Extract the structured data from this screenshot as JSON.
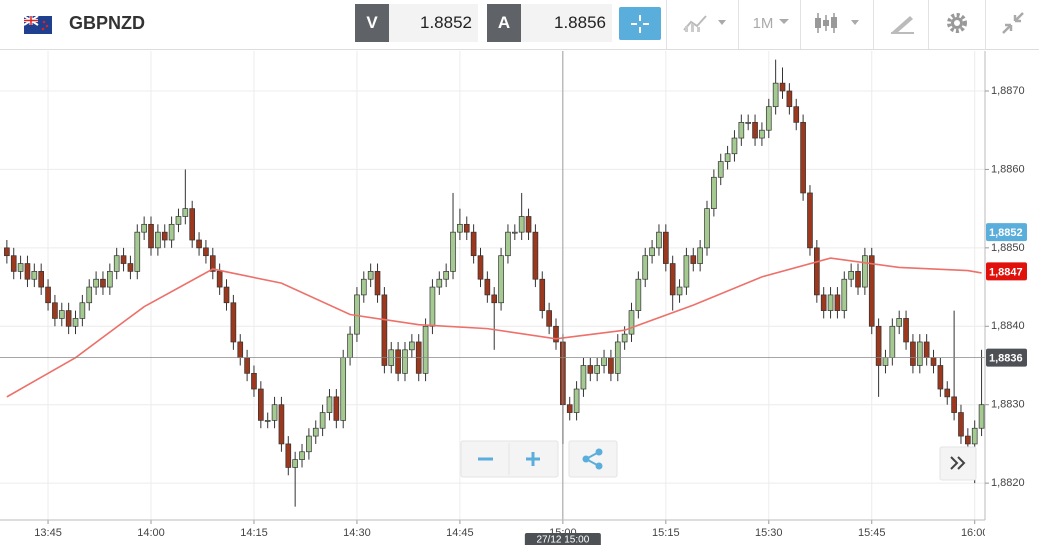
{
  "header": {
    "symbol": "GBPNZD",
    "bid_label": "V",
    "bid": 1.8852,
    "ask_label": "A",
    "ask": 1.8856,
    "timeframe": "1M"
  },
  "chart_data": {
    "type": "candlestick",
    "x": [
      819,
      820,
      821,
      822,
      823,
      824,
      825,
      826,
      827,
      828,
      829,
      830,
      831,
      832,
      833,
      834,
      835,
      836,
      837,
      838,
      839,
      840,
      841,
      842,
      843,
      844,
      845,
      846,
      847,
      848,
      849,
      850,
      851,
      852,
      853,
      854,
      855,
      856,
      857,
      858,
      859,
      860,
      861,
      862,
      863,
      864,
      865,
      866,
      867,
      868,
      869,
      870,
      871,
      872,
      873,
      874,
      875,
      876,
      877,
      878,
      879,
      880,
      881,
      882,
      883,
      884,
      885,
      886,
      887,
      888,
      889,
      890,
      891,
      892,
      893,
      894,
      895,
      896,
      897,
      898,
      899,
      900,
      901,
      902,
      903,
      904,
      905,
      906,
      907,
      908,
      909,
      910,
      911,
      912,
      913,
      914,
      915,
      916,
      917,
      918,
      919,
      920,
      921,
      922,
      923,
      924,
      925,
      926,
      927,
      928,
      929,
      930,
      931,
      932,
      933,
      934,
      935,
      936,
      937,
      938,
      939,
      940,
      941,
      942,
      943,
      944,
      945,
      946,
      947,
      948,
      949,
      950,
      951,
      952,
      953,
      954,
      955,
      956,
      957,
      958,
      959,
      960,
      961
    ],
    "open": [
      1.885,
      1.8849,
      1.8847,
      1.8848,
      1.8846,
      1.8847,
      1.8845,
      1.8843,
      1.8841,
      1.8842,
      1.884,
      1.8841,
      1.8843,
      1.8845,
      1.8846,
      1.8845,
      1.8847,
      1.8849,
      1.8848,
      1.8847,
      1.8852,
      1.8853,
      1.885,
      1.8852,
      1.8851,
      1.8853,
      1.8854,
      1.8855,
      1.8851,
      1.885,
      1.8849,
      1.8847,
      1.8845,
      1.8843,
      1.8838,
      1.8836,
      1.8834,
      1.8832,
      1.8828,
      1.8828,
      1.883,
      1.8825,
      1.8822,
      1.8823,
      1.8824,
      1.8826,
      1.8827,
      1.8829,
      1.8831,
      1.8828,
      1.8836,
      1.8839,
      1.8844,
      1.8846,
      1.8847,
      1.8844,
      1.8835,
      1.8837,
      1.8834,
      1.8837,
      1.8838,
      1.8834,
      1.884,
      1.8845,
      1.8846,
      1.8847,
      1.8852,
      1.8853,
      1.8852,
      1.8849,
      1.8846,
      1.8844,
      1.8843,
      1.8849,
      1.8852,
      1.8852,
      1.8854,
      1.8852,
      1.8846,
      1.8842,
      1.884,
      1.8838,
      1.883,
      1.8829,
      1.8832,
      1.8835,
      1.8834,
      1.8835,
      1.8836,
      1.8834,
      1.8838,
      1.8839,
      1.8842,
      1.8846,
      1.8849,
      1.885,
      1.8852,
      1.8848,
      1.8844,
      1.8845,
      1.8849,
      1.8848,
      1.885,
      1.8855,
      1.8859,
      1.8861,
      1.8862,
      1.8864,
      1.8866,
      1.8866,
      1.8864,
      1.8865,
      1.8868,
      1.8871,
      1.887,
      1.8868,
      1.8866,
      1.8857,
      1.885,
      1.8844,
      1.8842,
      1.8844,
      1.8842,
      1.8846,
      1.8847,
      1.8845,
      1.8849,
      1.884,
      1.8835,
      1.8836,
      1.884,
      1.8841,
      1.8838,
      1.8835,
      1.8838,
      1.8836,
      1.8835,
      1.8832,
      1.8831,
      1.8829,
      1.8826,
      1.8825,
      1.8827
    ],
    "high": [
      1.8851,
      1.885,
      1.8849,
      1.8849,
      1.8848,
      1.8848,
      1.8846,
      1.8844,
      1.8843,
      1.8843,
      1.8842,
      1.8844,
      1.8846,
      1.8847,
      1.8847,
      1.8848,
      1.885,
      1.885,
      1.8849,
      1.8853,
      1.8854,
      1.8854,
      1.8853,
      1.8853,
      1.8854,
      1.8855,
      1.886,
      1.8856,
      1.8852,
      1.8851,
      1.885,
      1.8848,
      1.8846,
      1.8844,
      1.8839,
      1.8837,
      1.8835,
      1.8833,
      1.8829,
      1.8831,
      1.8831,
      1.8826,
      1.8824,
      1.8825,
      1.8827,
      1.8828,
      1.883,
      1.8832,
      1.8832,
      1.8837,
      1.884,
      1.8845,
      1.8847,
      1.8848,
      1.8848,
      1.8845,
      1.8838,
      1.8838,
      1.8838,
      1.8839,
      1.8839,
      1.8841,
      1.8846,
      1.8847,
      1.8848,
      1.8857,
      1.8855,
      1.8854,
      1.8853,
      1.885,
      1.8847,
      1.8845,
      1.885,
      1.8853,
      1.8853,
      1.8857,
      1.8855,
      1.8853,
      1.8847,
      1.8843,
      1.8841,
      1.8839,
      1.8831,
      1.8833,
      1.8836,
      1.8836,
      1.8836,
      1.8837,
      1.8837,
      1.8839,
      1.884,
      1.8843,
      1.8847,
      1.885,
      1.8851,
      1.8853,
      1.8853,
      1.8849,
      1.8846,
      1.885,
      1.885,
      1.8851,
      1.8856,
      1.886,
      1.8862,
      1.8863,
      1.8865,
      1.8867,
      1.8867,
      1.8867,
      1.8866,
      1.8869,
      1.8874,
      1.8873,
      1.8871,
      1.8869,
      1.8867,
      1.8858,
      1.8851,
      1.8845,
      1.8845,
      1.8845,
      1.8847,
      1.8848,
      1.8848,
      1.885,
      1.885,
      1.8841,
      1.8837,
      1.8841,
      1.8842,
      1.8842,
      1.8839,
      1.8839,
      1.8839,
      1.8837,
      1.8836,
      1.8833,
      1.8842,
      1.883,
      1.8827,
      1.8828,
      1.8837
    ],
    "low": [
      1.8848,
      1.8846,
      1.8846,
      1.8845,
      1.8845,
      1.8844,
      1.8842,
      1.884,
      1.884,
      1.8839,
      1.8839,
      1.884,
      1.8842,
      1.8844,
      1.8844,
      1.8844,
      1.8846,
      1.8847,
      1.8846,
      1.8846,
      1.8851,
      1.8849,
      1.8849,
      1.885,
      1.885,
      1.8852,
      1.8853,
      1.885,
      1.8849,
      1.8848,
      1.8846,
      1.8844,
      1.8842,
      1.8837,
      1.8835,
      1.8833,
      1.8831,
      1.8827,
      1.8827,
      1.8827,
      1.8824,
      1.8821,
      1.8817,
      1.8822,
      1.8823,
      1.8825,
      1.8826,
      1.8828,
      1.8827,
      1.8827,
      1.8835,
      1.8838,
      1.8843,
      1.8845,
      1.8843,
      1.8834,
      1.8834,
      1.8833,
      1.8833,
      1.8836,
      1.8833,
      1.8833,
      1.8839,
      1.8844,
      1.8845,
      1.8846,
      1.8851,
      1.8851,
      1.8848,
      1.8845,
      1.8843,
      1.8837,
      1.8842,
      1.8848,
      1.8851,
      1.8851,
      1.8851,
      1.8845,
      1.8841,
      1.8839,
      1.8837,
      1.8825,
      1.8828,
      1.8828,
      1.8831,
      1.8833,
      1.8833,
      1.8834,
      1.8833,
      1.8833,
      1.8837,
      1.8838,
      1.8841,
      1.8845,
      1.8848,
      1.8849,
      1.8847,
      1.8842,
      1.8843,
      1.8844,
      1.8847,
      1.8847,
      1.8849,
      1.8854,
      1.8858,
      1.886,
      1.8861,
      1.8863,
      1.8865,
      1.8863,
      1.8863,
      1.8864,
      1.8867,
      1.8869,
      1.8867,
      1.8865,
      1.8856,
      1.8849,
      1.8843,
      1.8841,
      1.8841,
      1.8841,
      1.8841,
      1.8845,
      1.8844,
      1.8844,
      1.8839,
      1.8831,
      1.8834,
      1.8835,
      1.8839,
      1.8837,
      1.8834,
      1.8834,
      1.8835,
      1.8834,
      1.8831,
      1.883,
      1.8828,
      1.8825,
      1.8824,
      1.882,
      1.8826
    ],
    "close": [
      1.8849,
      1.8847,
      1.8848,
      1.8846,
      1.8847,
      1.8845,
      1.8843,
      1.8841,
      1.8842,
      1.884,
      1.8841,
      1.8843,
      1.8845,
      1.8846,
      1.8845,
      1.8847,
      1.8849,
      1.8848,
      1.8847,
      1.8852,
      1.8853,
      1.885,
      1.8852,
      1.8851,
      1.8853,
      1.8854,
      1.8855,
      1.8851,
      1.885,
      1.8849,
      1.8847,
      1.8845,
      1.8843,
      1.8838,
      1.8836,
      1.8834,
      1.8832,
      1.8828,
      1.8828,
      1.883,
      1.8825,
      1.8822,
      1.8823,
      1.8824,
      1.8826,
      1.8827,
      1.8829,
      1.8831,
      1.8828,
      1.8836,
      1.8839,
      1.8844,
      1.8846,
      1.8847,
      1.8844,
      1.8835,
      1.8837,
      1.8834,
      1.8837,
      1.8838,
      1.8834,
      1.884,
      1.8845,
      1.8846,
      1.8847,
      1.8852,
      1.8853,
      1.8852,
      1.8849,
      1.8846,
      1.8844,
      1.8843,
      1.8849,
      1.8852,
      1.8852,
      1.8854,
      1.8852,
      1.8846,
      1.8842,
      1.884,
      1.8838,
      1.883,
      1.8829,
      1.8832,
      1.8835,
      1.8834,
      1.8835,
      1.8836,
      1.8834,
      1.8838,
      1.8839,
      1.8842,
      1.8846,
      1.8849,
      1.885,
      1.8852,
      1.8848,
      1.8844,
      1.8845,
      1.8849,
      1.8848,
      1.885,
      1.8855,
      1.8859,
      1.8861,
      1.8862,
      1.8864,
      1.8866,
      1.8866,
      1.8864,
      1.8865,
      1.8868,
      1.8871,
      1.887,
      1.8868,
      1.8866,
      1.8857,
      1.885,
      1.8844,
      1.8842,
      1.8844,
      1.8842,
      1.8846,
      1.8847,
      1.8845,
      1.8849,
      1.884,
      1.8835,
      1.8836,
      1.884,
      1.8841,
      1.8838,
      1.8835,
      1.8838,
      1.8836,
      1.8835,
      1.8832,
      1.8831,
      1.8829,
      1.8826,
      1.8825,
      1.8827,
      1.883
    ],
    "up_color": "#a4c991",
    "down_color": "#9b381e",
    "moving_average": {
      "x": [
        819,
        829,
        839,
        849,
        859,
        869,
        879,
        889,
        899,
        909,
        919,
        929,
        939,
        949,
        959,
        961
      ],
      "values": [
        1.8831,
        1.8836,
        1.88425,
        1.88473,
        1.88455,
        1.88415,
        1.88402,
        1.88397,
        1.88384,
        1.88395,
        1.88427,
        1.88463,
        1.88487,
        1.88475,
        1.88471,
        1.88468
      ],
      "color": "#ee706a"
    },
    "xlim": [
      818,
      961.5
    ],
    "ylim": [
      1.88153,
      1.88751
    ],
    "xticks": [
      {
        "value": 825,
        "label": "13:45"
      },
      {
        "value": 840,
        "label": "14:00"
      },
      {
        "value": 855,
        "label": "14:15"
      },
      {
        "value": 870,
        "label": "14:30"
      },
      {
        "value": 885,
        "label": "14:45"
      },
      {
        "value": 900,
        "label": "15:00"
      },
      {
        "value": 915,
        "label": "15:15"
      },
      {
        "value": 930,
        "label": "15:30"
      },
      {
        "value": 945,
        "label": "15:45"
      },
      {
        "value": 960,
        "label": "16:00"
      }
    ],
    "yticks": [
      {
        "value": 1.882,
        "label": "1,8820"
      },
      {
        "value": 1.883,
        "label": "1,8830"
      },
      {
        "value": 1.884,
        "label": "1,8840"
      },
      {
        "value": 1.885,
        "label": "1,8850"
      },
      {
        "value": 1.886,
        "label": "1,8860"
      },
      {
        "value": 1.887,
        "label": "1,8870"
      }
    ],
    "grid": true,
    "price_labels": [
      {
        "value": 1.8852,
        "label": "1,8852",
        "color": "#5aaedb"
      },
      {
        "value": 1.8847,
        "label": "1,8847",
        "color": "#e0100b"
      }
    ],
    "crosshair": {
      "x": 900,
      "x_label": "27/12 15:00",
      "y": {
        "value": 1.8836,
        "label": "1,8836"
      }
    }
  }
}
